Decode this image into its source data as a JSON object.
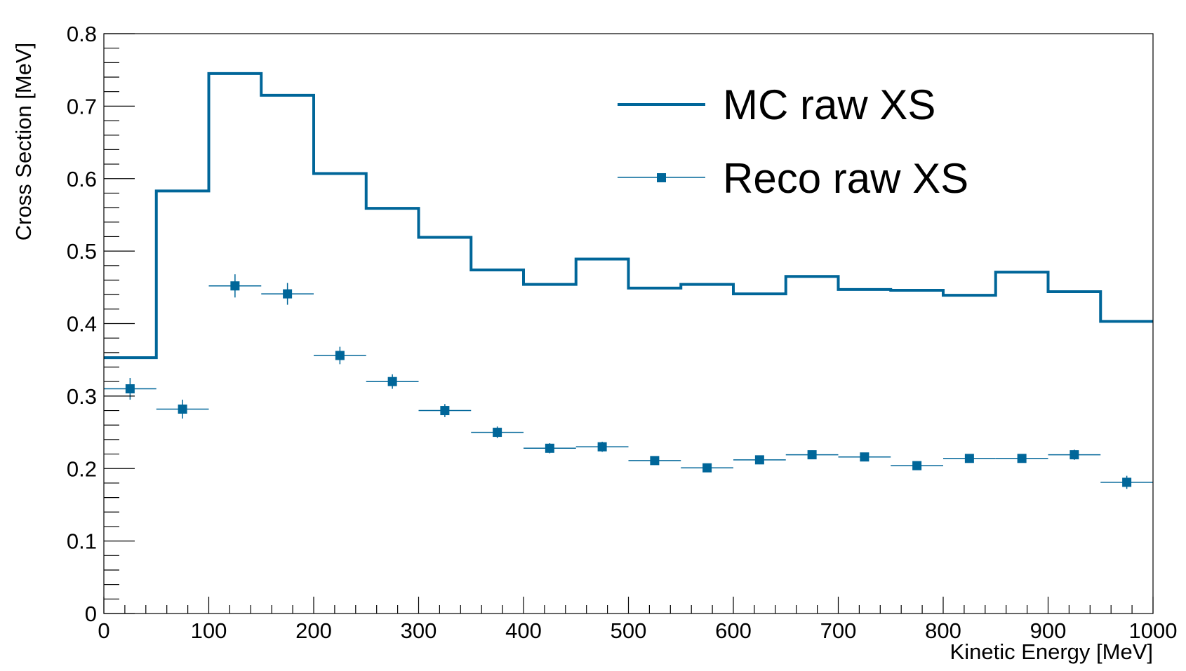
{
  "colors": {
    "series": "#006699",
    "axis": "#000000",
    "background": "#ffffff"
  },
  "chart_data": {
    "type": "line",
    "xlabel": "Kinetic Energy [MeV]",
    "ylabel": "Cross Section [MeV]",
    "xlim": [
      0,
      1000
    ],
    "ylim": [
      0,
      0.8
    ],
    "grid": false,
    "legend_position": "top-right",
    "x_ticks": [
      0,
      100,
      200,
      300,
      400,
      500,
      600,
      700,
      800,
      900,
      1000
    ],
    "x_tick_labels": [
      "0",
      "100",
      "200",
      "300",
      "400",
      "500",
      "600",
      "700",
      "800",
      "900",
      "1000"
    ],
    "y_ticks": [
      0,
      0.1,
      0.2,
      0.3,
      0.4,
      0.5,
      0.6,
      0.7,
      0.8
    ],
    "y_tick_labels": [
      "0",
      "0.1",
      "0.2",
      "0.3",
      "0.4",
      "0.5",
      "0.6",
      "0.7",
      "0.8"
    ],
    "bin_edges": [
      0,
      50,
      100,
      150,
      200,
      250,
      300,
      350,
      400,
      450,
      500,
      550,
      600,
      650,
      700,
      750,
      800,
      850,
      900,
      950,
      1000
    ],
    "series": [
      {
        "name": "MC raw XS",
        "style": "step",
        "values": [
          0.353,
          0.583,
          0.745,
          0.715,
          0.607,
          0.559,
          0.519,
          0.474,
          0.454,
          0.489,
          0.449,
          0.454,
          0.441,
          0.465,
          0.447,
          0.446,
          0.439,
          0.471,
          0.444,
          0.403
        ]
      },
      {
        "name": "Reco raw XS",
        "style": "markers-with-errors",
        "values": [
          0.31,
          0.282,
          0.452,
          0.441,
          0.356,
          0.32,
          0.28,
          0.25,
          0.228,
          0.23,
          0.211,
          0.201,
          0.212,
          0.219,
          0.216,
          0.204,
          0.214,
          0.214,
          0.219,
          0.181
        ],
        "errors": [
          0.015,
          0.013,
          0.016,
          0.015,
          0.012,
          0.01,
          0.009,
          0.008,
          0.007,
          0.007,
          0.006,
          0.006,
          0.006,
          0.006,
          0.006,
          0.006,
          0.006,
          0.006,
          0.007,
          0.009
        ]
      }
    ]
  }
}
